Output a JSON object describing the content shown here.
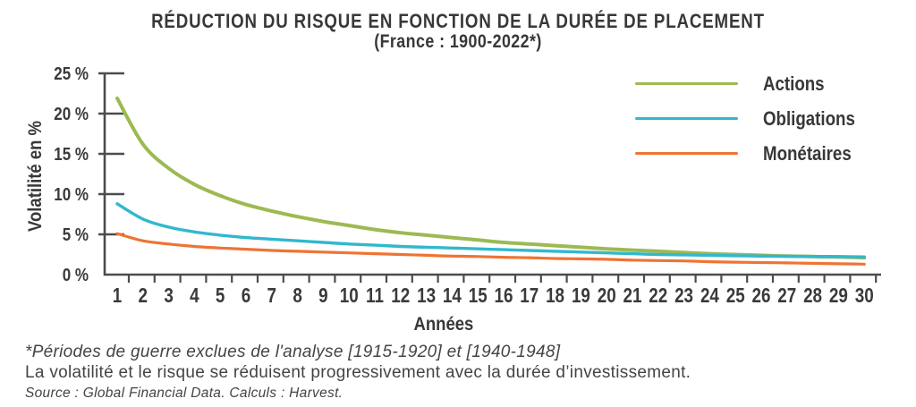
{
  "chart_data": {
    "type": "line",
    "title": "RÉDUCTION DU RISQUE EN FONCTION DE LA DURÉE DE PLACEMENT",
    "subtitle": "(France : 1900-2022*)",
    "xlabel": "Années",
    "ylabel": "Volatilité en %",
    "x": [
      1,
      2,
      3,
      4,
      5,
      6,
      7,
      8,
      9,
      10,
      11,
      12,
      13,
      14,
      15,
      16,
      17,
      18,
      19,
      20,
      21,
      22,
      23,
      24,
      25,
      26,
      27,
      28,
      29,
      30
    ],
    "ylim": [
      0,
      25
    ],
    "grid": false,
    "legend_position": "top-right",
    "y_ticks": [
      {
        "value": 0,
        "label": "0 %"
      },
      {
        "value": 5,
        "label": "5 %"
      },
      {
        "value": 10,
        "label": "10 %"
      },
      {
        "value": 15,
        "label": "15 %"
      },
      {
        "value": 20,
        "label": "20 %"
      },
      {
        "value": 25,
        "label": "25 %"
      }
    ],
    "series": [
      {
        "name": "Actions",
        "color": "#9cba52",
        "stroke_width": 4,
        "values": [
          21.9,
          16.2,
          13.2,
          11.2,
          9.8,
          8.7,
          7.9,
          7.2,
          6.6,
          6.1,
          5.6,
          5.2,
          4.9,
          4.6,
          4.3,
          4.0,
          3.8,
          3.6,
          3.4,
          3.2,
          3.05,
          2.9,
          2.75,
          2.6,
          2.5,
          2.4,
          2.3,
          2.25,
          2.2,
          2.1
        ]
      },
      {
        "name": "Obligations",
        "color": "#31b8ce",
        "stroke_width": 3.4,
        "values": [
          8.8,
          6.9,
          5.9,
          5.3,
          4.9,
          4.6,
          4.4,
          4.2,
          4.0,
          3.8,
          3.65,
          3.5,
          3.4,
          3.3,
          3.2,
          3.1,
          3.0,
          2.9,
          2.8,
          2.7,
          2.6,
          2.5,
          2.45,
          2.4,
          2.35,
          2.3,
          2.28,
          2.26,
          2.24,
          2.2
        ]
      },
      {
        "name": "Monétaires",
        "color": "#ee7434",
        "stroke_width": 3.2,
        "values": [
          5.1,
          4.2,
          3.8,
          3.5,
          3.3,
          3.15,
          3.0,
          2.9,
          2.8,
          2.7,
          2.6,
          2.5,
          2.4,
          2.3,
          2.25,
          2.15,
          2.1,
          2.0,
          1.95,
          1.9,
          1.8,
          1.75,
          1.7,
          1.6,
          1.55,
          1.5,
          1.45,
          1.4,
          1.35,
          1.3
        ]
      }
    ]
  },
  "footnotes": {
    "war_note": "*Périodes de guerre exclues de l'analyse [1915-1920] et [1940-1948]",
    "summary": "La volatilité et le risque se réduisent progressivement avec la durée d’investissement.",
    "source": "Source : Global Financial Data. Calculs : Harvest."
  },
  "colors": {
    "axis": "#4c4c4c",
    "text": "#3a3a3a"
  }
}
